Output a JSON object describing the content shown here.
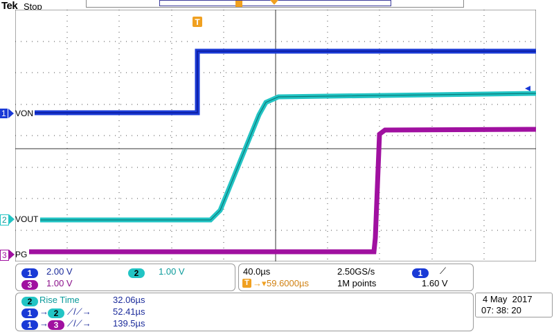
{
  "header": {
    "brand": "Tek",
    "acquisition_state": "Stop"
  },
  "markers": {
    "trigger_position_label": "T"
  },
  "channels": [
    {
      "number": "1",
      "label": "VON",
      "color": "#1a3ad6",
      "scale": "2.00 V"
    },
    {
      "number": "2",
      "label": "VOUT",
      "color": "#22c4c4",
      "scale": "1.00 V"
    },
    {
      "number": "3",
      "label": "PG",
      "color": "#a010a0",
      "scale": "1.00 V"
    }
  ],
  "timebase": {
    "time_per_div": "40.0µs",
    "sample_rate": "2.50GS/s",
    "trigger_position": "59.6000µs",
    "record_length": "1M points"
  },
  "trigger": {
    "source": "1",
    "slope_symbol": "⟋",
    "level": "1.60 V"
  },
  "measurements": [
    {
      "label": "Rise Time",
      "value": "32.06µs"
    },
    {
      "label": "1→2 ⟋⟋",
      "value": "52.41µs"
    },
    {
      "label": "1→3 ⟋⟋",
      "value": "139.5µs"
    }
  ],
  "datetime": {
    "date": "4 May  2017",
    "time": "07: 38: 20"
  },
  "colors": {
    "ch1": "#1a3ad6",
    "ch2": "#22c4c4",
    "ch3": "#a010a0",
    "trigger": "#f0a020"
  }
}
